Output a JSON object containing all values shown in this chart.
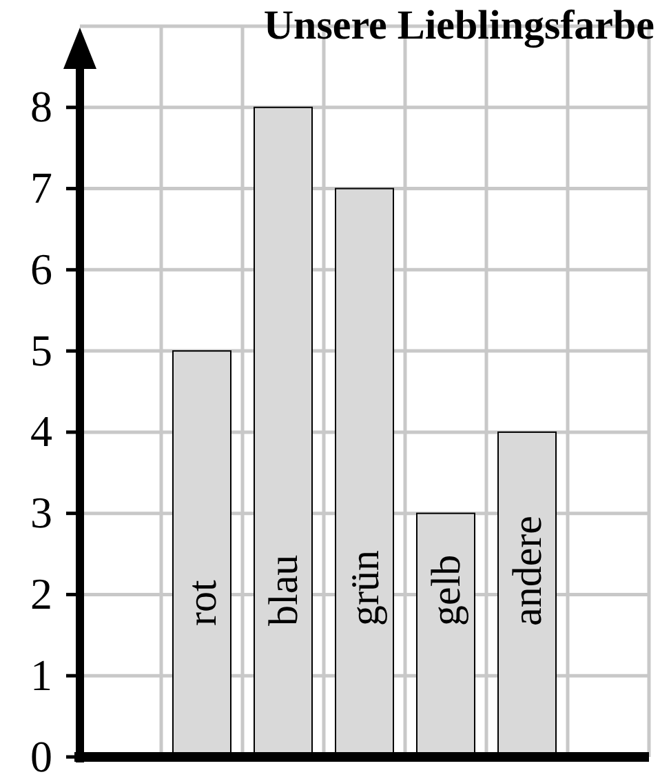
{
  "chart_data": {
    "type": "bar",
    "title": "Unsere Lieblingsfarbe",
    "categories": [
      "rot",
      "blau",
      "grün",
      "gelb",
      "andere"
    ],
    "values": [
      5,
      8,
      7,
      3,
      4
    ],
    "color": "#d9d9d9",
    "ylim": [
      0,
      9
    ],
    "yticks": [
      0,
      1,
      2,
      3,
      4,
      5,
      6,
      7,
      8
    ],
    "grid": true
  }
}
